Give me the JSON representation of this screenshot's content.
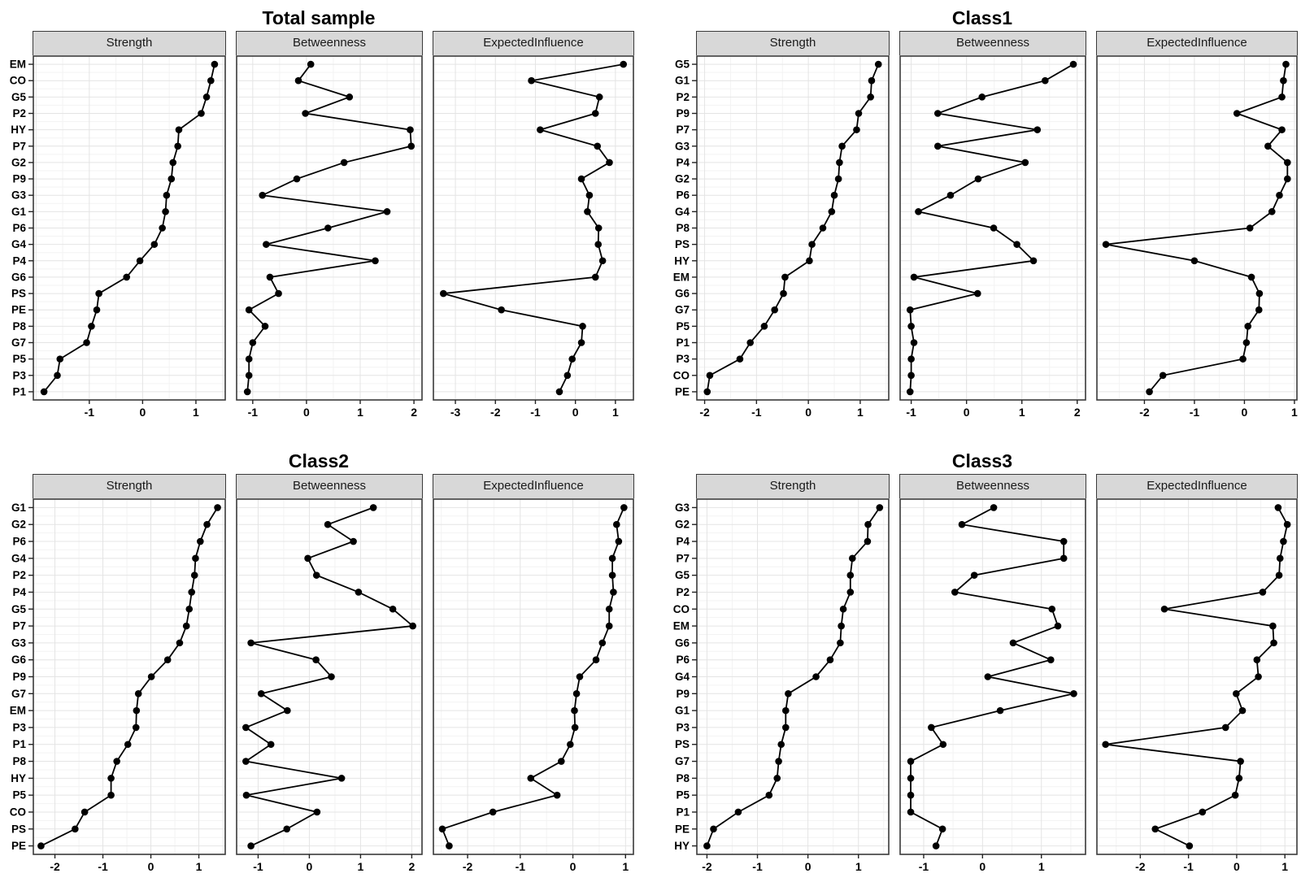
{
  "colors": {
    "point": "#000000",
    "line": "#000000",
    "strip_bg": "#d8d8d8",
    "panel_border": "#3a3a3a",
    "grid_major": "#e4e4e4",
    "grid_minor": "#f3f3f3"
  },
  "chart_data": [
    {
      "type": "line",
      "title": "Total sample",
      "orientation": "horizontal dot-line centrality plot",
      "items": [
        "EM",
        "CO",
        "G5",
        "P2",
        "HY",
        "P7",
        "G2",
        "P9",
        "G3",
        "G1",
        "P6",
        "G4",
        "P4",
        "G6",
        "PS",
        "PE",
        "P8",
        "G7",
        "P5",
        "P3",
        "P1"
      ],
      "facets": [
        {
          "label": "Strength",
          "ticks": [
            -1,
            0,
            1
          ],
          "xlim": [
            -2.05,
            1.55
          ],
          "values": [
            1.35,
            1.28,
            1.2,
            1.1,
            0.68,
            0.66,
            0.57,
            0.54,
            0.45,
            0.43,
            0.37,
            0.22,
            -0.05,
            -0.3,
            -0.82,
            -0.86,
            -0.96,
            -1.05,
            -1.55,
            -1.6,
            -1.85
          ]
        },
        {
          "label": "Betweenness",
          "ticks": [
            -1,
            0,
            1,
            2
          ],
          "xlim": [
            -1.3,
            2.15
          ],
          "values": [
            0.08,
            -0.15,
            0.8,
            -0.02,
            1.93,
            1.95,
            0.7,
            -0.18,
            -0.82,
            1.5,
            0.4,
            -0.75,
            1.28,
            -0.68,
            -0.52,
            -1.07,
            -0.77,
            -1.0,
            -1.07,
            -1.07,
            -1.1
          ]
        },
        {
          "label": "ExpectedInfluence",
          "ticks": [
            -3,
            -2,
            -1,
            0,
            1
          ],
          "xlim": [
            -3.55,
            1.45
          ],
          "values": [
            1.2,
            -1.1,
            0.6,
            0.5,
            -0.88,
            0.55,
            0.85,
            0.15,
            0.35,
            0.3,
            0.58,
            0.57,
            0.68,
            0.5,
            -3.3,
            -1.85,
            0.18,
            0.15,
            -0.08,
            -0.2,
            -0.4
          ]
        }
      ]
    },
    {
      "type": "line",
      "title": "Class1",
      "orientation": "horizontal dot-line centrality plot",
      "items": [
        "G5",
        "G1",
        "P2",
        "P9",
        "P7",
        "G3",
        "P4",
        "G2",
        "P6",
        "G4",
        "P8",
        "PS",
        "HY",
        "EM",
        "G6",
        "G7",
        "P5",
        "P1",
        "P3",
        "CO",
        "PE"
      ],
      "facets": [
        {
          "label": "Strength",
          "ticks": [
            -2,
            -1,
            0,
            1
          ],
          "xlim": [
            -2.15,
            1.55
          ],
          "values": [
            1.35,
            1.22,
            1.2,
            0.97,
            0.93,
            0.65,
            0.6,
            0.58,
            0.5,
            0.45,
            0.28,
            0.07,
            0.02,
            -0.45,
            -0.48,
            -0.65,
            -0.85,
            -1.12,
            -1.32,
            -1.9,
            -1.95
          ]
        },
        {
          "label": "Betweenness",
          "ticks": [
            -1,
            0,
            1,
            2
          ],
          "xlim": [
            -1.2,
            2.15
          ],
          "values": [
            1.93,
            1.42,
            0.28,
            -0.52,
            1.28,
            -0.52,
            1.06,
            0.21,
            -0.29,
            -0.87,
            0.49,
            0.91,
            1.21,
            -0.95,
            0.2,
            -1.02,
            -1.0,
            -0.95,
            -1.0,
            -1.0,
            -1.02
          ]
        },
        {
          "label": "ExpectedInfluence",
          "ticks": [
            -2,
            -1,
            0,
            1
          ],
          "xlim": [
            -2.95,
            1.05
          ],
          "values": [
            0.83,
            0.78,
            0.75,
            -0.15,
            0.75,
            0.47,
            0.86,
            0.86,
            0.7,
            0.55,
            0.11,
            -2.77,
            -1.0,
            0.14,
            0.3,
            0.29,
            0.07,
            0.04,
            -0.03,
            -1.63,
            -1.9
          ]
        }
      ]
    },
    {
      "type": "line",
      "title": "Class2",
      "orientation": "horizontal dot-line centrality plot",
      "items": [
        "G1",
        "G2",
        "P6",
        "G4",
        "P2",
        "P4",
        "G5",
        "P7",
        "G3",
        "G6",
        "P9",
        "G7",
        "EM",
        "P3",
        "P1",
        "P8",
        "HY",
        "P5",
        "CO",
        "PS",
        "PE"
      ],
      "facets": [
        {
          "label": "Strength",
          "ticks": [
            -2,
            -1,
            0,
            1
          ],
          "xlim": [
            -2.45,
            1.55
          ],
          "values": [
            1.39,
            1.17,
            1.03,
            0.93,
            0.91,
            0.85,
            0.8,
            0.74,
            0.6,
            0.35,
            0.01,
            -0.26,
            -0.3,
            -0.31,
            -0.48,
            -0.71,
            -0.83,
            -0.83,
            -1.38,
            -1.58,
            -2.29
          ]
        },
        {
          "label": "Betweenness",
          "ticks": [
            -1,
            0,
            1,
            2
          ],
          "xlim": [
            -1.42,
            2.2
          ],
          "values": [
            1.25,
            0.36,
            0.86,
            -0.03,
            0.14,
            0.96,
            1.63,
            2.02,
            -1.14,
            0.13,
            0.43,
            -0.94,
            -0.43,
            -1.24,
            -0.75,
            -1.24,
            0.63,
            -1.23,
            0.15,
            -0.44,
            -1.14
          ]
        },
        {
          "label": "ExpectedInfluence",
          "ticks": [
            -2,
            -1,
            0,
            1
          ],
          "xlim": [
            -2.65,
            1.15
          ],
          "values": [
            0.97,
            0.83,
            0.87,
            0.75,
            0.75,
            0.77,
            0.69,
            0.69,
            0.56,
            0.44,
            0.13,
            0.07,
            0.03,
            0.04,
            -0.05,
            -0.22,
            -0.8,
            -0.3,
            -1.52,
            -2.48,
            -2.35
          ]
        }
      ]
    },
    {
      "type": "line",
      "title": "Class3",
      "orientation": "horizontal dot-line centrality plot",
      "items": [
        "G3",
        "G2",
        "P4",
        "P7",
        "G5",
        "P2",
        "CO",
        "EM",
        "G6",
        "P6",
        "G4",
        "P9",
        "G1",
        "P3",
        "PS",
        "G7",
        "P8",
        "P5",
        "P1",
        "PE",
        "HY"
      ],
      "facets": [
        {
          "label": "Strength",
          "ticks": [
            -2,
            -1,
            0,
            1
          ],
          "xlim": [
            -2.2,
            1.6
          ],
          "values": [
            1.42,
            1.19,
            1.18,
            0.88,
            0.84,
            0.84,
            0.7,
            0.66,
            0.64,
            0.44,
            0.16,
            -0.39,
            -0.44,
            -0.44,
            -0.53,
            -0.58,
            -0.61,
            -0.77,
            -1.38,
            -1.87,
            -2.0
          ]
        },
        {
          "label": "Betweenness",
          "ticks": [
            -1,
            0,
            1
          ],
          "xlim": [
            -1.4,
            1.75
          ],
          "values": [
            0.19,
            -0.35,
            1.38,
            1.38,
            -0.14,
            -0.47,
            1.18,
            1.28,
            0.52,
            1.16,
            0.09,
            1.55,
            0.3,
            -0.87,
            -0.67,
            -1.22,
            -1.22,
            -1.22,
            -1.22,
            -0.68,
            -0.79
          ]
        },
        {
          "label": "ExpectedInfluence",
          "ticks": [
            -2,
            -1,
            0,
            1
          ],
          "xlim": [
            -2.9,
            1.25
          ],
          "values": [
            0.86,
            1.05,
            0.97,
            0.9,
            0.88,
            0.54,
            -1.5,
            0.75,
            0.77,
            0.42,
            0.45,
            -0.01,
            0.12,
            -0.23,
            -2.72,
            0.08,
            0.05,
            -0.03,
            -0.71,
            -1.69,
            -0.98
          ]
        }
      ]
    }
  ]
}
